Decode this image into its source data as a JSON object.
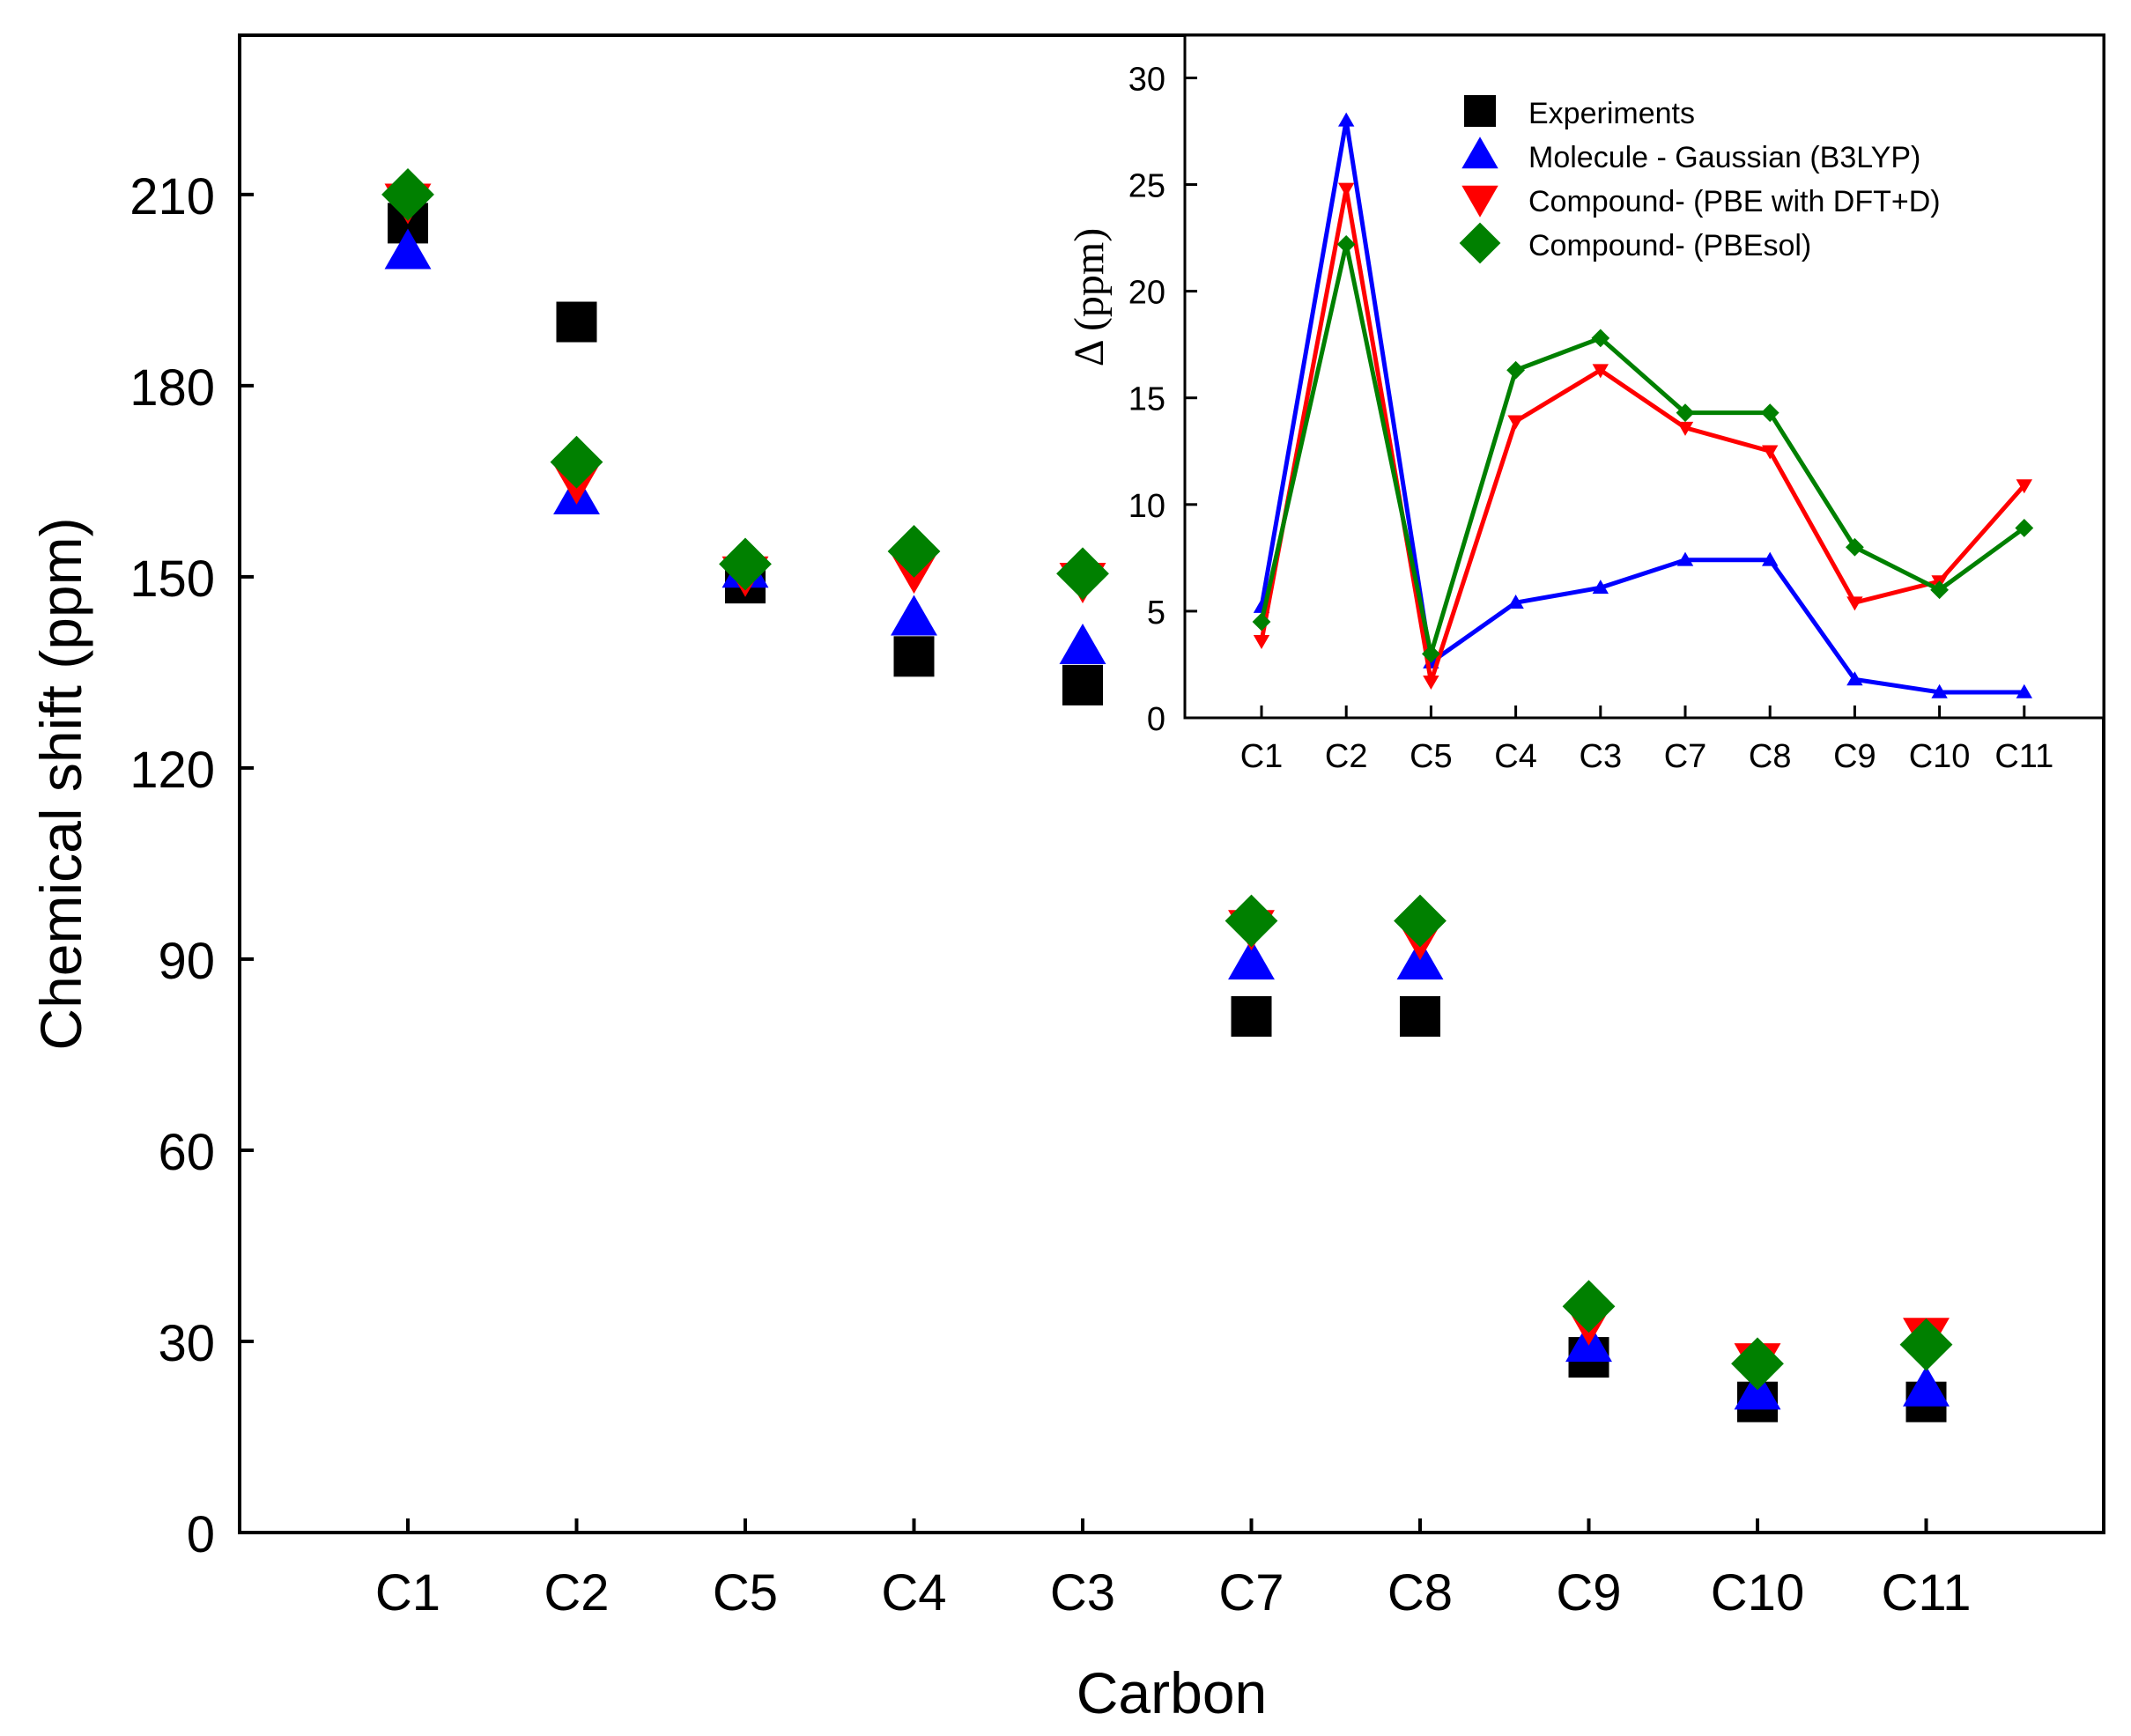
{
  "chart_data": [
    {
      "type": "scatter",
      "xlabel": "Carbon",
      "ylabel": "Chemical shift (ppm)",
      "categories": [
        "C1",
        "C2",
        "C5",
        "C4",
        "C3",
        "C7",
        "C8",
        "C9",
        "C10",
        "C11"
      ],
      "ylim": [
        0,
        235
      ],
      "yticks": [
        "0",
        "30",
        "60",
        "90",
        "120",
        "150",
        "180",
        "210"
      ],
      "grid": false,
      "series": [
        {
          "name": "Experiments",
          "marker": "square",
          "color": "#000000",
          "values": [
            205.5,
            190,
            149,
            137.5,
            133,
            81,
            81,
            27.5,
            20.5,
            20.5
          ]
        },
        {
          "name": "Molecule - Gaussian (B3LYP)",
          "marker": "triangle-up",
          "color": "#0000ff",
          "values": [
            201,
            162.5,
            151,
            143.5,
            139,
            89.5,
            89.5,
            29.5,
            22,
            22.5
          ]
        },
        {
          "name": "Compound- (PBE with DFT+D)",
          "marker": "triangle-down",
          "color": "#ff0000",
          "values": [
            209,
            165,
            150.5,
            151,
            149.5,
            95,
            93.5,
            33,
            27,
            31
          ]
        },
        {
          "name": "Compound- (PBEsol)",
          "marker": "diamond",
          "color": "#008000",
          "values": [
            210,
            168,
            152,
            154,
            150.5,
            96,
            96,
            35.5,
            26.5,
            29.5
          ]
        }
      ]
    },
    {
      "type": "line",
      "xlabel": "",
      "ylabel": "Δ (ppm)",
      "categories": [
        "C1",
        "C2",
        "C5",
        "C4",
        "C3",
        "C7",
        "C8",
        "C9",
        "C10",
        "C11"
      ],
      "ylim": [
        0,
        32
      ],
      "yticks": [
        "0",
        "5",
        "10",
        "15",
        "20",
        "25",
        "30"
      ],
      "legend_position": "top",
      "grid": false,
      "series": [
        {
          "name": "Molecule - Gaussian (B3LYP)",
          "marker": "triangle-up",
          "color": "#0000ff",
          "values": [
            5.2,
            28,
            2.6,
            5.4,
            6.1,
            7.4,
            7.4,
            1.8,
            1.2,
            1.2
          ]
        },
        {
          "name": "Compound- (PBE with DFT+D)",
          "marker": "triangle-down",
          "color": "#ff0000",
          "values": [
            3.6,
            24.8,
            1.7,
            13.9,
            16.3,
            13.6,
            12.5,
            5.4,
            6.4,
            10.9
          ]
        },
        {
          "name": "Compound- (PBEsol)",
          "marker": "diamond",
          "color": "#008000",
          "values": [
            4.5,
            22.2,
            3.0,
            16.3,
            17.8,
            14.3,
            14.3,
            8.0,
            6.0,
            8.9
          ]
        }
      ]
    }
  ],
  "legend": {
    "entries": [
      {
        "label": "Experiments",
        "marker": "square",
        "color": "#000000"
      },
      {
        "label": "Molecule - Gaussian (B3LYP)",
        "marker": "triangle-up",
        "color": "#0000ff"
      },
      {
        "label": "Compound- (PBE with DFT+D)",
        "marker": "triangle-down",
        "color": "#ff0000"
      },
      {
        "label": "Compound- (PBEsol)",
        "marker": "diamond",
        "color": "#008000"
      }
    ]
  }
}
